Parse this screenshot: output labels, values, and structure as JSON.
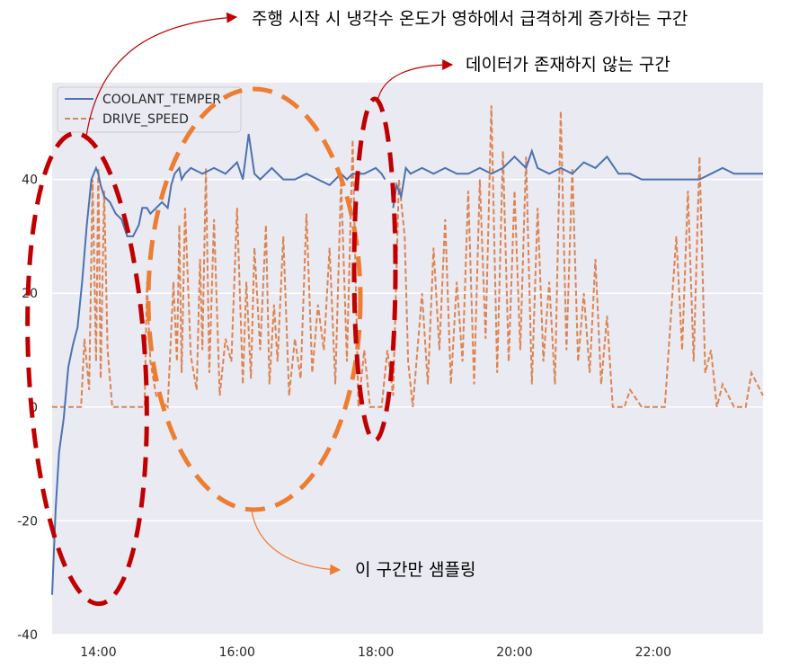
{
  "chart_data": {
    "type": "line",
    "xlim": [
      "13:20",
      "23:35"
    ],
    "ylim": [
      -40,
      57
    ],
    "x_ticks": [
      "14:00",
      "16:00",
      "18:00",
      "20:00",
      "22:00"
    ],
    "y_ticks": [
      -40,
      -20,
      0,
      20,
      40
    ],
    "grid": true,
    "legend_position": "upper-left",
    "series": [
      {
        "name": "COOLANT_TEMPER",
        "style": "solid",
        "color": "#4c72b0",
        "segments": [
          {
            "x": [
              "13:20",
              "13:23",
              "13:26",
              "13:30",
              "13:34",
              "13:38",
              "13:42",
              "13:46",
              "13:50",
              "13:54",
              "13:58",
              "14:00",
              "14:02",
              "14:05",
              "14:10",
              "14:15",
              "14:20",
              "14:25",
              "14:30",
              "14:35",
              "14:38",
              "14:42",
              "14:45",
              "14:50",
              "14:55",
              "15:00",
              "15:03",
              "15:06",
              "15:10",
              "15:12",
              "15:15",
              "15:20",
              "15:30",
              "15:40",
              "15:50",
              "16:00",
              "16:05",
              "16:10",
              "16:15",
              "16:20",
              "16:30",
              "16:40",
              "16:50",
              "17:00",
              "17:10",
              "17:20",
              "17:30",
              "17:35",
              "17:40",
              "17:50",
              "18:00",
              "18:05",
              "18:08"
            ],
            "y": [
              -33,
              -18,
              -8,
              -2,
              7,
              11,
              14,
              22,
              32,
              40,
              42,
              41,
              39,
              37,
              36,
              34,
              33,
              30,
              30,
              32,
              35,
              35,
              34,
              35,
              36,
              35,
              39,
              41,
              42,
              40,
              41,
              42,
              41,
              42,
              41,
              43,
              40,
              48,
              41,
              40,
              42,
              40,
              40,
              41,
              40,
              39,
              41,
              40,
              41,
              41,
              42,
              41,
              40
            ]
          },
          {
            "x": [
              "18:15",
              "18:18",
              "18:22",
              "18:26",
              "18:30",
              "18:40",
              "18:50",
              "19:00",
              "19:10",
              "19:20",
              "19:30",
              "19:40",
              "19:50",
              "20:00",
              "20:10",
              "20:15",
              "20:20",
              "20:30",
              "20:40",
              "20:50",
              "21:00",
              "21:10",
              "21:20",
              "21:30",
              "21:40",
              "21:50",
              "22:00",
              "22:10",
              "22:20",
              "22:30",
              "22:40",
              "22:50",
              "23:00",
              "23:10",
              "23:20",
              "23:30",
              "23:35"
            ],
            "y": [
              35,
              39,
              37,
              42,
              41,
              42,
              41,
              42,
              41,
              41,
              42,
              41,
              42,
              44,
              42,
              45,
              42,
              41,
              42,
              41,
              43,
              42,
              44,
              41,
              41,
              40,
              40,
              40,
              40,
              40,
              40,
              41,
              42,
              41,
              41,
              41,
              41
            ]
          }
        ]
      },
      {
        "name": "DRIVE_SPEED",
        "style": "dashed",
        "color": "#dd8452",
        "description_values": "frequent spikes between 0 and ~53 km/h, baseline 0",
        "x": [
          "13:20",
          "13:45",
          "13:48",
          "13:52",
          "13:55",
          "13:58",
          "14:00",
          "14:02",
          "14:05",
          "14:08",
          "14:12",
          "14:40",
          "14:42",
          "14:45",
          "14:50",
          "15:00",
          "15:05",
          "15:08",
          "15:10",
          "15:12",
          "15:15",
          "15:20",
          "15:25",
          "15:28",
          "15:30",
          "15:33",
          "15:36",
          "15:40",
          "15:45",
          "15:50",
          "15:55",
          "16:00",
          "16:05",
          "16:08",
          "16:12",
          "16:15",
          "16:20",
          "16:25",
          "16:28",
          "16:32",
          "16:35",
          "16:40",
          "16:45",
          "16:50",
          "16:55",
          "17:00",
          "17:05",
          "17:10",
          "17:15",
          "17:20",
          "17:25",
          "17:30",
          "17:35",
          "17:40",
          "17:45",
          "17:50",
          "17:55",
          "18:05",
          "18:10",
          "18:15",
          "18:20",
          "18:25",
          "18:28",
          "18:32",
          "18:40",
          "18:45",
          "18:50",
          "18:55",
          "19:00",
          "19:05",
          "19:10",
          "19:15",
          "19:20",
          "19:25",
          "19:30",
          "19:35",
          "19:40",
          "19:45",
          "19:50",
          "19:55",
          "20:00",
          "20:05",
          "20:10",
          "20:15",
          "20:20",
          "20:25",
          "20:30",
          "20:35",
          "20:40",
          "20:45",
          "20:50",
          "20:55",
          "21:00",
          "21:05",
          "21:10",
          "21:15",
          "21:20",
          "21:25",
          "21:30",
          "21:35",
          "21:40",
          "21:50",
          "22:00",
          "22:10",
          "22:20",
          "22:25",
          "22:30",
          "22:35",
          "22:40",
          "22:45",
          "22:50",
          "22:55",
          "23:00",
          "23:10",
          "23:20",
          "23:25",
          "23:30",
          "23:35"
        ],
        "y": [
          0,
          0,
          12,
          3,
          40,
          8,
          42,
          5,
          38,
          10,
          0,
          0,
          22,
          8,
          2,
          0,
          22,
          8,
          32,
          6,
          35,
          9,
          3,
          26,
          10,
          42,
          6,
          33,
          2,
          12,
          8,
          35,
          4,
          22,
          5,
          28,
          10,
          32,
          4,
          18,
          8,
          30,
          2,
          12,
          5,
          34,
          6,
          18,
          10,
          28,
          4,
          40,
          8,
          47,
          0,
          10,
          0,
          0,
          10,
          2,
          40,
          30,
          8,
          0,
          20,
          4,
          28,
          10,
          33,
          4,
          22,
          8,
          38,
          4,
          40,
          12,
          53,
          6,
          45,
          8,
          38,
          10,
          44,
          4,
          35,
          8,
          22,
          4,
          52,
          10,
          42,
          8,
          20,
          6,
          26,
          4,
          16,
          0,
          0,
          0,
          3,
          0,
          0,
          0,
          30,
          10,
          38,
          8,
          44,
          6,
          10,
          0,
          4,
          0,
          0,
          6,
          4,
          2
        ]
      }
    ]
  },
  "legend": {
    "items": [
      "COOLANT_TEMPER",
      "DRIVE_SPEED"
    ]
  },
  "annotations": {
    "top": "주행 시작 시 냉각수 온도가 영하에서 급격하게 증가하는 구간",
    "right": "데이터가 존재하지 않는 구간",
    "bottom": "이 구간만 샘플링"
  },
  "colors": {
    "plot_bg": "#eaeaf2",
    "grid": "#ffffff",
    "coolant": "#4c72b0",
    "speed": "#dd8452",
    "red_ellipse": "#c00000",
    "orange_ellipse": "#ed7d31"
  }
}
